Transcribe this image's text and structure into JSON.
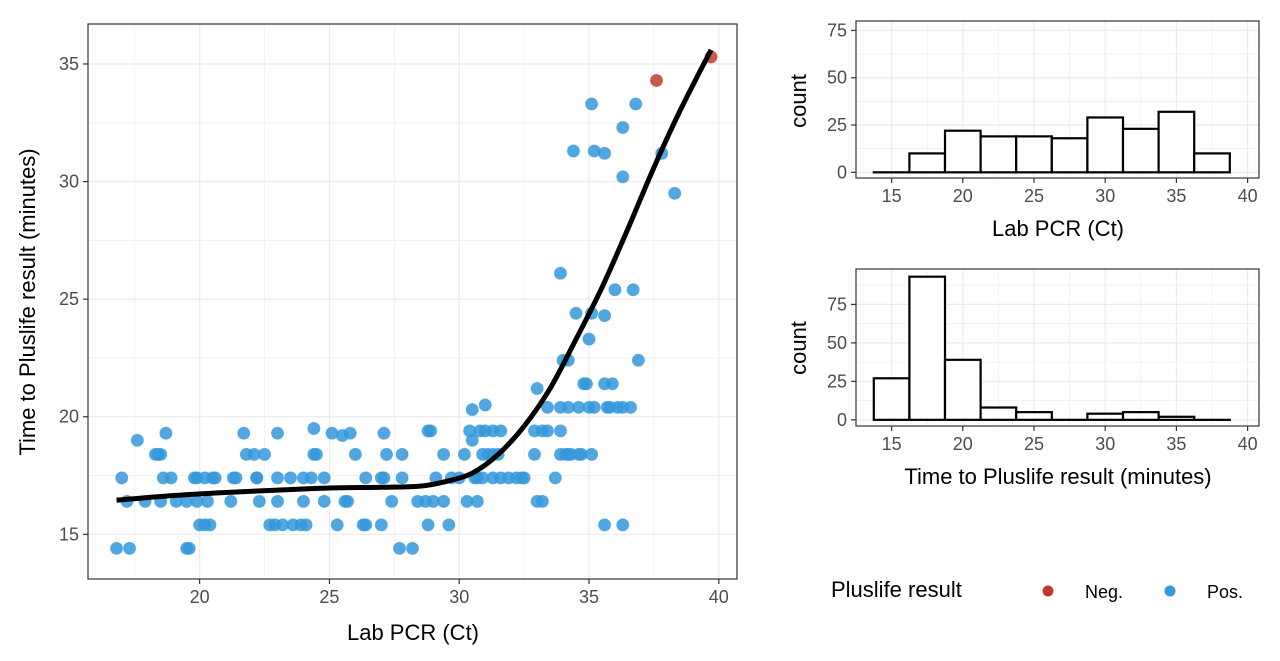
{
  "chart_data": [
    {
      "id": "scatter",
      "type": "scatter",
      "title": "",
      "xlabel": "Lab PCR (Ct)",
      "ylabel": "Time to Pluslife result (minutes)",
      "xlim": [
        15.7,
        40.7
      ],
      "ylim": [
        13.1,
        36.7
      ],
      "xticks": [
        20,
        25,
        30,
        35,
        40
      ],
      "yticks": [
        15,
        20,
        25,
        30,
        35
      ],
      "grid": true,
      "series": [
        {
          "name": "Neg.",
          "color": "#C0392B",
          "points": [
            [
              37.6,
              34.3
            ],
            [
              39.7,
              35.3
            ]
          ]
        },
        {
          "name": "Pos.",
          "color": "#3498DB",
          "points": [
            [
              16.8,
              14.4
            ],
            [
              17.3,
              14.4
            ],
            [
              19.5,
              14.4
            ],
            [
              19.6,
              14.4
            ],
            [
              27.7,
              14.4
            ],
            [
              28.2,
              14.4
            ],
            [
              20.0,
              15.4
            ],
            [
              20.2,
              15.4
            ],
            [
              20.4,
              15.4
            ],
            [
              22.7,
              15.4
            ],
            [
              22.9,
              15.4
            ],
            [
              23.2,
              15.4
            ],
            [
              23.6,
              15.4
            ],
            [
              23.9,
              15.4
            ],
            [
              24.1,
              15.4
            ],
            [
              25.3,
              15.4
            ],
            [
              26.3,
              15.4
            ],
            [
              26.4,
              15.4
            ],
            [
              27.0,
              15.4
            ],
            [
              28.8,
              15.4
            ],
            [
              29.6,
              15.4
            ],
            [
              35.6,
              15.4
            ],
            [
              36.3,
              15.4
            ],
            [
              17.2,
              16.4
            ],
            [
              17.9,
              16.4
            ],
            [
              18.5,
              16.4
            ],
            [
              19.1,
              16.4
            ],
            [
              19.5,
              16.4
            ],
            [
              19.9,
              16.4
            ],
            [
              20.3,
              16.4
            ],
            [
              21.2,
              16.4
            ],
            [
              22.3,
              16.4
            ],
            [
              23.0,
              16.4
            ],
            [
              24.0,
              16.4
            ],
            [
              24.8,
              16.4
            ],
            [
              25.6,
              16.4
            ],
            [
              25.7,
              16.4
            ],
            [
              27.4,
              16.4
            ],
            [
              28.4,
              16.4
            ],
            [
              28.7,
              16.4
            ],
            [
              29.0,
              16.4
            ],
            [
              29.4,
              16.4
            ],
            [
              30.3,
              16.4
            ],
            [
              30.7,
              16.4
            ],
            [
              33.0,
              16.4
            ],
            [
              33.2,
              16.4
            ],
            [
              17.0,
              17.4
            ],
            [
              18.6,
              17.4
            ],
            [
              18.9,
              17.4
            ],
            [
              19.8,
              17.4
            ],
            [
              19.9,
              17.4
            ],
            [
              20.2,
              17.4
            ],
            [
              20.5,
              17.4
            ],
            [
              20.6,
              17.4
            ],
            [
              21.3,
              17.4
            ],
            [
              21.4,
              17.4
            ],
            [
              22.2,
              17.4
            ],
            [
              22.2,
              17.4
            ],
            [
              23.0,
              17.4
            ],
            [
              23.5,
              17.4
            ],
            [
              24.0,
              17.4
            ],
            [
              24.3,
              17.4
            ],
            [
              24.8,
              17.4
            ],
            [
              26.4,
              17.4
            ],
            [
              27.0,
              17.4
            ],
            [
              27.1,
              17.4
            ],
            [
              27.8,
              17.4
            ],
            [
              29.1,
              17.4
            ],
            [
              29.7,
              17.4
            ],
            [
              30.0,
              17.4
            ],
            [
              30.6,
              17.4
            ],
            [
              30.7,
              17.4
            ],
            [
              30.9,
              17.4
            ],
            [
              31.3,
              17.4
            ],
            [
              31.6,
              17.4
            ],
            [
              31.9,
              17.4
            ],
            [
              32.2,
              17.4
            ],
            [
              32.4,
              17.4
            ],
            [
              32.5,
              17.4
            ],
            [
              33.7,
              17.4
            ],
            [
              34.2,
              18.4
            ],
            [
              18.3,
              18.4
            ],
            [
              18.4,
              18.4
            ],
            [
              18.5,
              18.4
            ],
            [
              21.8,
              18.4
            ],
            [
              22.1,
              18.4
            ],
            [
              22.5,
              18.4
            ],
            [
              24.4,
              18.4
            ],
            [
              24.5,
              18.4
            ],
            [
              26.0,
              18.4
            ],
            [
              27.2,
              18.4
            ],
            [
              27.8,
              18.4
            ],
            [
              29.4,
              18.4
            ],
            [
              30.2,
              18.4
            ],
            [
              30.9,
              18.4
            ],
            [
              31.1,
              18.4
            ],
            [
              31.3,
              18.4
            ],
            [
              31.5,
              18.4
            ],
            [
              32.9,
              18.4
            ],
            [
              33.9,
              18.4
            ],
            [
              34.1,
              18.4
            ],
            [
              34.3,
              18.4
            ],
            [
              34.6,
              18.4
            ],
            [
              34.7,
              18.4
            ],
            [
              35.1,
              18.4
            ],
            [
              17.6,
              19.0
            ],
            [
              18.7,
              19.3
            ],
            [
              21.7,
              19.3
            ],
            [
              23.0,
              19.3
            ],
            [
              24.4,
              19.5
            ],
            [
              25.1,
              19.3
            ],
            [
              25.5,
              19.2
            ],
            [
              25.8,
              19.3
            ],
            [
              27.1,
              19.3
            ],
            [
              28.8,
              19.4
            ],
            [
              28.9,
              19.4
            ],
            [
              30.4,
              19.4
            ],
            [
              30.5,
              19.0
            ],
            [
              30.8,
              19.4
            ],
            [
              31.0,
              19.4
            ],
            [
              31.3,
              19.4
            ],
            [
              31.6,
              19.4
            ],
            [
              32.9,
              19.4
            ],
            [
              33.2,
              19.4
            ],
            [
              33.4,
              19.4
            ],
            [
              33.9,
              19.4
            ],
            [
              30.5,
              20.3
            ],
            [
              31.0,
              20.5
            ],
            [
              33.4,
              20.4
            ],
            [
              33.9,
              20.4
            ],
            [
              34.2,
              20.4
            ],
            [
              34.6,
              20.4
            ],
            [
              35.0,
              20.4
            ],
            [
              35.2,
              20.4
            ],
            [
              35.7,
              20.4
            ],
            [
              35.8,
              20.4
            ],
            [
              36.1,
              20.4
            ],
            [
              36.3,
              20.4
            ],
            [
              36.6,
              20.4
            ],
            [
              33.0,
              21.2
            ],
            [
              34.8,
              21.4
            ],
            [
              34.9,
              21.4
            ],
            [
              35.6,
              21.4
            ],
            [
              35.9,
              21.4
            ],
            [
              34.0,
              22.4
            ],
            [
              34.2,
              22.4
            ],
            [
              36.9,
              22.4
            ],
            [
              35.0,
              23.3
            ],
            [
              34.5,
              24.4
            ],
            [
              35.1,
              24.4
            ],
            [
              35.6,
              24.3
            ],
            [
              36.0,
              25.4
            ],
            [
              36.7,
              25.4
            ],
            [
              33.9,
              26.1
            ],
            [
              34.4,
              31.3
            ],
            [
              35.2,
              31.3
            ],
            [
              35.6,
              31.2
            ],
            [
              36.3,
              32.3
            ],
            [
              36.3,
              30.2
            ],
            [
              37.8,
              31.2
            ],
            [
              38.3,
              29.5
            ],
            [
              35.1,
              33.3
            ],
            [
              36.8,
              33.3
            ]
          ]
        }
      ],
      "smooth_curve": {
        "color": "#000000",
        "points": [
          [
            16.8,
            16.45
          ],
          [
            19,
            16.65
          ],
          [
            21,
            16.78
          ],
          [
            23,
            16.88
          ],
          [
            25,
            16.97
          ],
          [
            27,
            17.0
          ],
          [
            28.5,
            17.05
          ],
          [
            29.5,
            17.25
          ],
          [
            30.5,
            17.6
          ],
          [
            31.5,
            18.4
          ],
          [
            32.5,
            19.6
          ],
          [
            33.5,
            21.2
          ],
          [
            34.5,
            23.3
          ],
          [
            35.5,
            25.5
          ],
          [
            36.5,
            28.0
          ],
          [
            37.5,
            30.6
          ],
          [
            38.5,
            33.0
          ],
          [
            39.7,
            35.6
          ]
        ]
      },
      "legend": {
        "title": "Pluslife result",
        "position": "bottom-right",
        "entries": [
          {
            "label": "Neg.",
            "color": "#C0392B"
          },
          {
            "label": "Pos.",
            "color": "#3498DB"
          }
        ]
      }
    },
    {
      "id": "hist-ct",
      "type": "bar",
      "title": "",
      "xlabel": "Lab PCR (Ct)",
      "ylabel": "count",
      "xlim": [
        12.5,
        40.8
      ],
      "ylim": [
        -3,
        80
      ],
      "xticks": [
        15,
        20,
        25,
        30,
        35,
        40
      ],
      "yticks": [
        0,
        25,
        50,
        75
      ],
      "grid": true,
      "bin_edges": [
        13.75,
        16.25,
        18.75,
        21.25,
        23.75,
        26.25,
        28.75,
        31.25,
        33.75,
        36.25,
        38.75
      ],
      "values": [
        0,
        10,
        22,
        19,
        19,
        18,
        29,
        23,
        32,
        10
      ]
    },
    {
      "id": "hist-time",
      "type": "bar",
      "title": "",
      "xlabel": "Time to Pluslife result (minutes)",
      "ylabel": "count",
      "xlim": [
        12.5,
        40.8
      ],
      "ylim": [
        -4,
        98
      ],
      "xticks": [
        15,
        20,
        25,
        30,
        35,
        40
      ],
      "yticks": [
        0,
        25,
        50,
        75
      ],
      "grid": true,
      "bin_edges": [
        13.75,
        16.25,
        18.75,
        21.25,
        23.75,
        26.25,
        28.75,
        31.25,
        33.75,
        36.25,
        38.75
      ],
      "values": [
        27,
        93,
        39,
        8,
        5,
        0,
        4,
        5,
        2,
        0
      ]
    }
  ]
}
